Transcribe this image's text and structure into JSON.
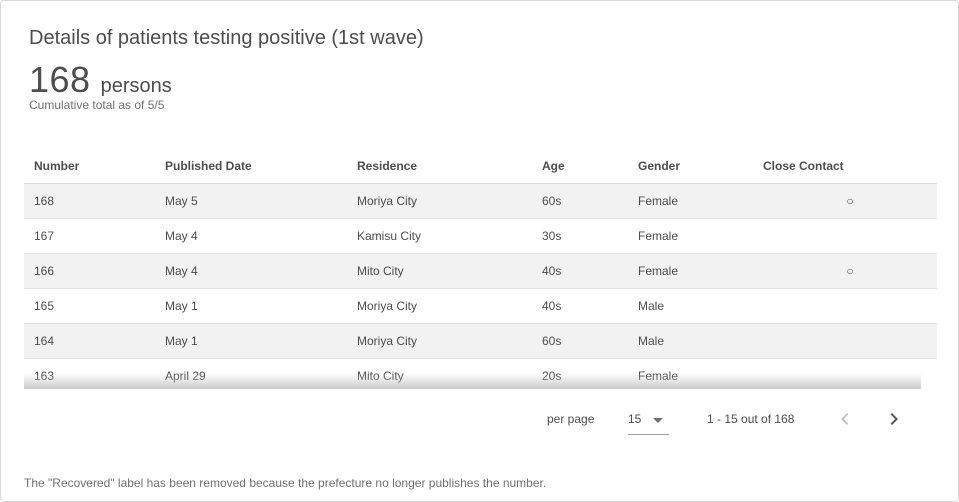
{
  "card": {
    "title": "Details of patients testing positive (1st wave)",
    "total": "168",
    "unit": "persons",
    "as_of": "Cumulative total as of 5/5"
  },
  "table": {
    "headers": [
      "Number",
      "Published Date",
      "Residence",
      "Age",
      "Gender",
      "Close Contact"
    ],
    "rows": [
      [
        "168",
        "May 5",
        "Moriya City",
        "60s",
        "Female",
        "○"
      ],
      [
        "167",
        "May 4",
        "Kamisu City",
        "30s",
        "Female",
        ""
      ],
      [
        "166",
        "May 4",
        "Mito City",
        "40s",
        "Female",
        "○"
      ],
      [
        "165",
        "May 1",
        "Moriya City",
        "40s",
        "Male",
        ""
      ],
      [
        "164",
        "May 1",
        "Moriya City",
        "60s",
        "Male",
        ""
      ],
      [
        "163",
        "April 29",
        "Mito City",
        "20s",
        "Female",
        ""
      ]
    ]
  },
  "pagination": {
    "per_page_label": "per page",
    "per_page_value": "15",
    "range_text": "1 - 15 out of 168",
    "prev_icon": "chevron-left-icon",
    "next_icon": "chevron-right-icon"
  },
  "footer_note": "The \"Recovered\" label has been removed because the prefecture no longer publishes the number.",
  "colors": {
    "row_stripe": "#f2f2f2",
    "text": "#4d4d4d",
    "muted": "#707070"
  }
}
